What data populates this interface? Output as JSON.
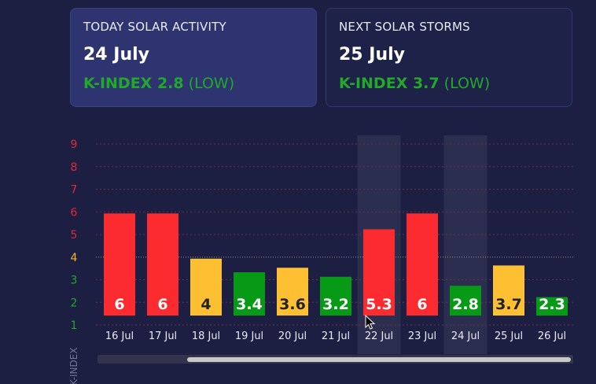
{
  "cards": {
    "today": {
      "heading": "TODAY SOLAR ACTIVITY",
      "date": "24 July",
      "kindex": "K-INDEX 2.8",
      "level": "(LOW)"
    },
    "next": {
      "heading": "NEXT SOLAR STORMS",
      "date": "25 July",
      "kindex": "K-INDEX 3.7",
      "level": "(LOW)"
    }
  },
  "chart_data": {
    "type": "bar",
    "categories": [
      "16 Jul",
      "17 Jul",
      "18 Jul",
      "19 Jul",
      "20 Jul",
      "21 Jul",
      "22 Jul",
      "23 Jul",
      "24 Jul",
      "25 Jul",
      "26 Jul"
    ],
    "values": [
      6,
      6,
      4,
      3.4,
      3.6,
      3.2,
      5.3,
      6,
      2.8,
      3.7,
      2.3
    ],
    "value_labels": [
      "6",
      "6",
      "4",
      "3.4",
      "3.6",
      "3.2",
      "5.3",
      "6",
      "2.8",
      "3.7",
      "2.3"
    ],
    "highlighted_categories": [
      "22 Jul",
      "24 Jul"
    ],
    "yticks": [
      "1",
      "2",
      "3",
      "4",
      "5",
      "6",
      "7",
      "8",
      "9"
    ],
    "ylabel": "K-INDEX",
    "ylim": [
      1,
      9
    ],
    "grid": true,
    "colors": {
      "low": "#079a17",
      "moderate": "#fec033",
      "high": "#fc2b2f",
      "tick_low": "#22a82a",
      "tick_moderate": "#f2b728",
      "tick_high": "#e02a34",
      "label_dark": "#222222",
      "label_light": "#ffffff"
    }
  }
}
